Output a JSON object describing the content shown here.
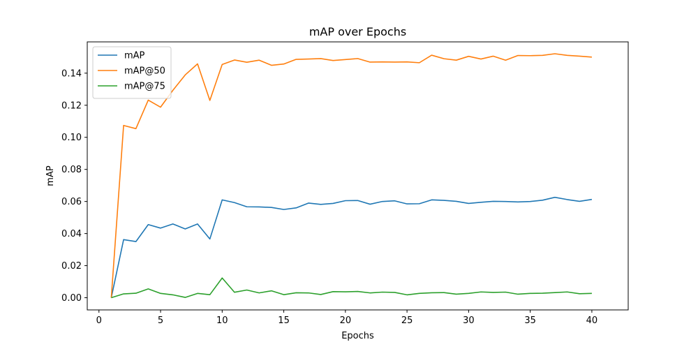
{
  "chart_data": {
    "type": "line",
    "title": "mAP over Epochs",
    "xlabel": "Epochs",
    "ylabel": "mAP",
    "xlim": [
      -0.95,
      42.95
    ],
    "ylim": [
      -0.0076,
      0.1595
    ],
    "xticks": [
      0,
      5,
      10,
      15,
      20,
      25,
      30,
      35,
      40
    ],
    "xtick_labels": [
      "0",
      "5",
      "10",
      "15",
      "20",
      "25",
      "30",
      "35",
      "40"
    ],
    "yticks": [
      0.0,
      0.02,
      0.04,
      0.06,
      0.08,
      0.1,
      0.12,
      0.14
    ],
    "ytick_labels": [
      "0.00",
      "0.02",
      "0.04",
      "0.06",
      "0.08",
      "0.10",
      "0.12",
      "0.14"
    ],
    "grid": false,
    "legend_position": "top-left",
    "x": [
      1,
      2,
      3,
      4,
      5,
      6,
      7,
      8,
      9,
      10,
      11,
      12,
      13,
      14,
      15,
      16,
      17,
      18,
      19,
      20,
      21,
      22,
      23,
      24,
      25,
      26,
      27,
      28,
      29,
      30,
      31,
      32,
      33,
      34,
      35,
      36,
      37,
      38,
      39,
      40
    ],
    "series": [
      {
        "name": "mAP",
        "color": "#1f77b4",
        "values": [
          0.0,
          0.0362,
          0.035,
          0.0456,
          0.0434,
          0.046,
          0.0429,
          0.046,
          0.0366,
          0.061,
          0.0593,
          0.0567,
          0.0566,
          0.0563,
          0.055,
          0.056,
          0.059,
          0.0582,
          0.0588,
          0.0605,
          0.0606,
          0.0583,
          0.06,
          0.0604,
          0.0585,
          0.0586,
          0.061,
          0.0607,
          0.0601,
          0.0588,
          0.0595,
          0.0601,
          0.06,
          0.0597,
          0.06,
          0.0608,
          0.0626,
          0.0612,
          0.0601,
          0.0613
        ]
      },
      {
        "name": "mAP@50",
        "color": "#ff7f0e",
        "values": [
          0.0,
          0.1074,
          0.1054,
          0.1232,
          0.1188,
          0.1293,
          0.1389,
          0.1458,
          0.123,
          0.1454,
          0.1482,
          0.1468,
          0.1481,
          0.1449,
          0.1457,
          0.1486,
          0.1488,
          0.1491,
          0.1479,
          0.1485,
          0.1491,
          0.1469,
          0.147,
          0.1469,
          0.147,
          0.1465,
          0.1512,
          0.149,
          0.1481,
          0.1505,
          0.1488,
          0.1506,
          0.1481,
          0.151,
          0.1509,
          0.1511,
          0.1521,
          0.1511,
          0.1506,
          0.15
        ]
      },
      {
        "name": "mAP@75",
        "color": "#2ca02c",
        "values": [
          0.0,
          0.0024,
          0.0028,
          0.0055,
          0.0027,
          0.0018,
          0.0002,
          0.0027,
          0.0019,
          0.0123,
          0.0034,
          0.0048,
          0.003,
          0.0043,
          0.0019,
          0.0031,
          0.003,
          0.002,
          0.0038,
          0.0037,
          0.0039,
          0.003,
          0.0035,
          0.0033,
          0.0018,
          0.0027,
          0.0031,
          0.0032,
          0.0022,
          0.0027,
          0.0036,
          0.0033,
          0.0035,
          0.0022,
          0.0027,
          0.0028,
          0.0032,
          0.0036,
          0.0025,
          0.0027
        ]
      }
    ]
  }
}
